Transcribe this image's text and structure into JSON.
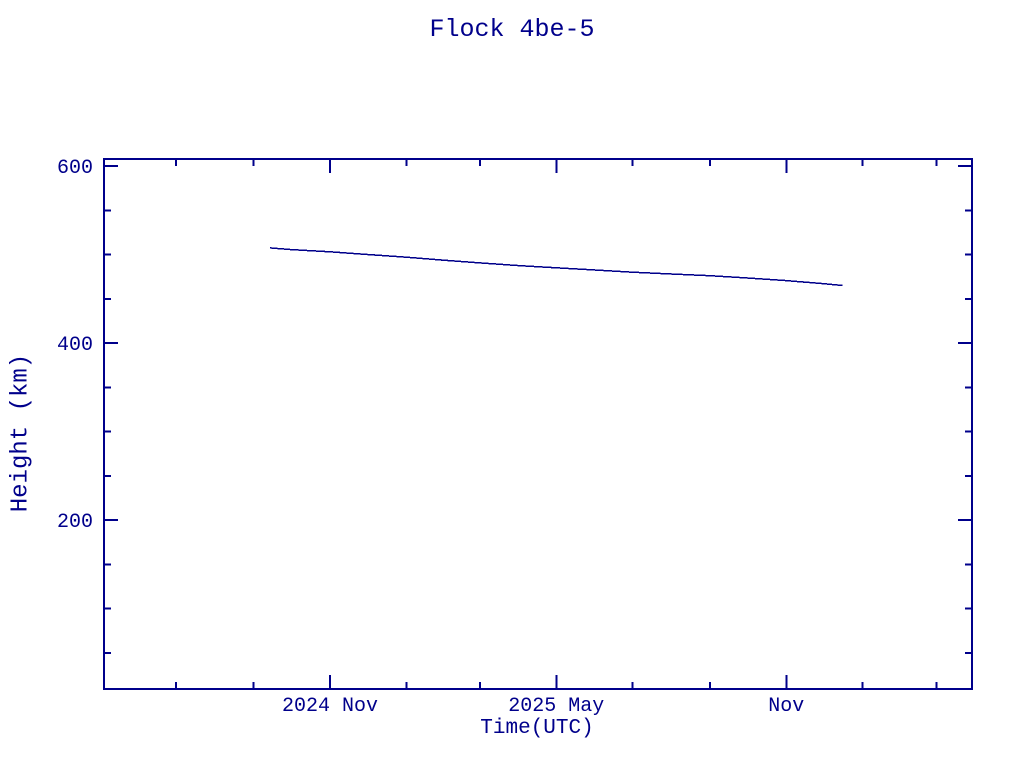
{
  "page": {
    "background_color": "#ffffff",
    "plot_color": "#00008B"
  },
  "chart_data": {
    "type": "line",
    "title": "Flock 4be-5",
    "xlabel": "Time(UTC)",
    "ylabel": "Height (km)",
    "grid": false,
    "legend": false,
    "line_color": "#00008B",
    "x_axis": {
      "range": [
        "2024-05-03",
        "2026-03-28"
      ],
      "major_ticks": [
        {
          "date": "2024-11-01",
          "label": "2024 Nov"
        },
        {
          "date": "2025-05-01",
          "label": "2025 May"
        },
        {
          "date": "2025-11-01",
          "label": "Nov"
        }
      ],
      "minor_ticks": [
        "2024-07-01",
        "2024-09-01",
        "2025-01-01",
        "2025-03-01",
        "2025-07-01",
        "2025-09-01",
        "2026-01-01",
        "2026-03-01"
      ]
    },
    "y_axis": {
      "range": [
        10,
        608
      ],
      "unit": "km",
      "major_ticks": [
        {
          "value": 600,
          "label": "600"
        },
        {
          "value": 400,
          "label": "400"
        },
        {
          "value": 200,
          "label": "200"
        }
      ],
      "minor_ticks": [
        550,
        500,
        450,
        350,
        300,
        250,
        150,
        100,
        50
      ]
    },
    "series": [
      {
        "name": "Flock 4be-5 orbital height",
        "points": [
          {
            "date": "2024-09-14",
            "height_km": 507.5
          },
          {
            "date": "2024-10-01",
            "height_km": 505.5
          },
          {
            "date": "2024-11-01",
            "height_km": 503.0
          },
          {
            "date": "2024-12-01",
            "height_km": 500.0
          },
          {
            "date": "2025-01-01",
            "height_km": 497.0
          },
          {
            "date": "2025-02-01",
            "height_km": 493.5
          },
          {
            "date": "2025-03-01",
            "height_km": 490.5
          },
          {
            "date": "2025-04-01",
            "height_km": 487.5
          },
          {
            "date": "2025-05-01",
            "height_km": 485.0
          },
          {
            "date": "2025-06-01",
            "height_km": 482.5
          },
          {
            "date": "2025-07-01",
            "height_km": 480.0
          },
          {
            "date": "2025-08-01",
            "height_km": 478.0
          },
          {
            "date": "2025-09-01",
            "height_km": 476.0
          },
          {
            "date": "2025-10-01",
            "height_km": 473.5
          },
          {
            "date": "2025-11-01",
            "height_km": 470.5
          },
          {
            "date": "2025-12-01",
            "height_km": 467.0
          },
          {
            "date": "2025-12-16",
            "height_km": 465.0
          }
        ]
      }
    ]
  }
}
